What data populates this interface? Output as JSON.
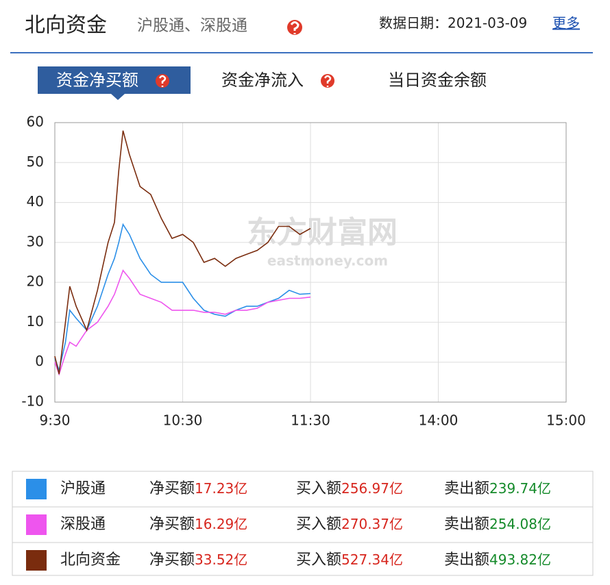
{
  "header": {
    "title": "北向资金",
    "subtitle": "沪股通、深股通",
    "date": "数据日期：2021-03-09",
    "more": "更多"
  },
  "tabs": [
    "资金净买额",
    "资金净流入",
    "当日资金余额"
  ],
  "watermark": {
    "brand": "东方财富网",
    "site": "eastmoney.com"
  },
  "chart_data": {
    "type": "line",
    "x": [
      0,
      2,
      5,
      7,
      10,
      15,
      20,
      25,
      28,
      30,
      32,
      35,
      40,
      45,
      50,
      55,
      60,
      65,
      70,
      75,
      80,
      85,
      90,
      95,
      100,
      105,
      110,
      115,
      120
    ],
    "xlim": [
      0,
      240
    ],
    "xticks": [
      {
        "value": 0,
        "label": "9:30"
      },
      {
        "value": 60,
        "label": "10:30"
      },
      {
        "value": 120,
        "label": "11:30"
      },
      {
        "value": 180,
        "label": "14:00"
      },
      {
        "value": 240,
        "label": "15:00"
      }
    ],
    "ylim": [
      -10,
      60
    ],
    "yticks": [
      -10,
      0,
      10,
      20,
      30,
      40,
      50,
      60
    ],
    "grid": true,
    "summary_labels": [
      "净买额",
      "买入额",
      "卖出额"
    ],
    "series": [
      {
        "name": "沪股通",
        "color": "#2b8fe8",
        "values": [
          1,
          -2,
          5,
          13,
          11,
          8,
          14,
          22,
          26,
          30,
          34.5,
          32,
          26,
          22,
          20,
          20,
          20,
          16,
          13,
          12,
          11.5,
          13,
          14,
          14,
          15,
          16,
          18,
          17,
          17.2
        ],
        "summary": [
          "17.23亿",
          "256.97亿",
          "239.74亿"
        ]
      },
      {
        "name": "深股通",
        "color": "#ee55ee",
        "values": [
          0,
          -3,
          2,
          5,
          4,
          8,
          10,
          14,
          17,
          20,
          23,
          21,
          17,
          16,
          15,
          13,
          13,
          13,
          12.5,
          12.5,
          12,
          13,
          13,
          13.5,
          15,
          15.5,
          16,
          16,
          16.3
        ],
        "summary": [
          "16.29亿",
          "270.37亿",
          "254.08亿"
        ]
      },
      {
        "name": "北向资金",
        "color": "#7a2c0e",
        "values": [
          1.5,
          -3,
          10,
          19,
          14,
          8,
          18,
          30,
          35,
          48,
          58,
          52,
          44,
          42,
          36,
          31,
          32,
          30,
          25,
          26,
          24,
          26,
          27,
          28,
          30,
          34,
          34,
          32,
          33.5
        ],
        "summary": [
          "33.52亿",
          "527.34亿",
          "493.82亿"
        ]
      }
    ]
  }
}
